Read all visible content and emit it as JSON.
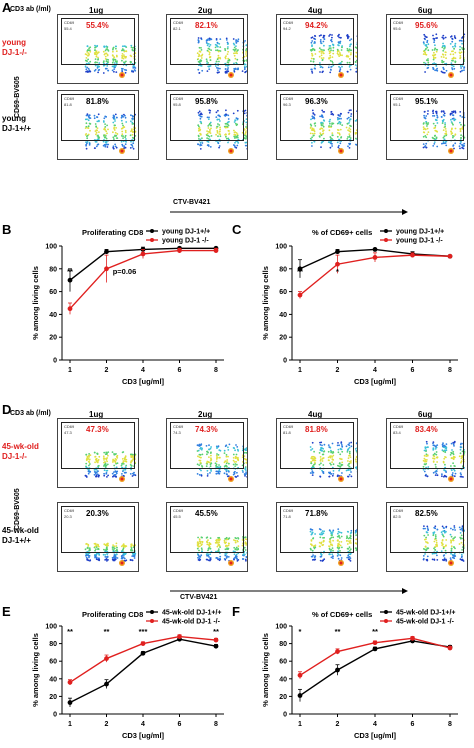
{
  "panels": {
    "A": {
      "letter": "A",
      "header": "CD3 ab (/ml)",
      "doses": [
        "1ug",
        "2ug",
        "4ug",
        "6ug"
      ],
      "yaxis": "CD69-BV605",
      "xaxis": "CTV-BV421",
      "rows": [
        {
          "label1": "young",
          "label2": "DJ-1-/-",
          "color": "#e0201f",
          "gate_values": [
            "55.4",
            "82.1",
            "94.2",
            "95.6"
          ],
          "percents": [
            "55.4%",
            "82.1%",
            "94.2%",
            "95.6%"
          ]
        },
        {
          "label1": "young",
          "label2": "DJ-1+/+",
          "color": "#000000",
          "gate_values": [
            "81.8",
            "95.8",
            "96.3",
            "95.1"
          ],
          "percents": [
            "81.8%",
            "95.8%",
            "96.3%",
            "95.1%"
          ]
        }
      ],
      "gate_name": "CD69"
    },
    "D": {
      "letter": "D",
      "header": "CD3 ab (/ml)",
      "doses": [
        "1ug",
        "2ug",
        "4ug",
        "6ug"
      ],
      "yaxis": "CD69-BV605",
      "xaxis": "CTV-BV421",
      "rows": [
        {
          "label1": "45-wk-old",
          "label2": "DJ-1-/-",
          "color": "#e0201f",
          "gate_values": [
            "47.3",
            "74.3",
            "81.8",
            "83.4"
          ],
          "percents": [
            "47.3%",
            "74.3%",
            "81.8%",
            "83.4%"
          ]
        },
        {
          "label1": "45-wk-old",
          "label2": "DJ-1+/+",
          "color": "#000000",
          "gate_values": [
            "20.3",
            "45.5",
            "71.8",
            "82.5"
          ],
          "percents": [
            "20.3%",
            "45.5%",
            "71.8%",
            "82.5%"
          ]
        }
      ],
      "gate_name": "CD69"
    }
  },
  "chart_data": [
    {
      "id": "B",
      "letter": "B",
      "type": "line",
      "title": "Proliferating  CD8",
      "xlabel": "CD3 [ug/ml]",
      "ylabel": "% among living cells",
      "x": [
        1,
        2,
        4,
        6,
        8
      ],
      "ylim": [
        0,
        100
      ],
      "yticks": [
        0,
        20,
        40,
        60,
        80,
        100
      ],
      "legend": "top-right",
      "series": [
        {
          "name": "young DJ-1+/+",
          "color": "#000000",
          "values": [
            70,
            95,
            97,
            98,
            98
          ],
          "errors": [
            10,
            2,
            2,
            1,
            1
          ]
        },
        {
          "name": "young DJ-1 -/-",
          "color": "#e0201f",
          "values": [
            45,
            80,
            93,
            96,
            96
          ],
          "errors": [
            5,
            12,
            4,
            2,
            2
          ]
        }
      ],
      "annotations": [
        {
          "x": 1,
          "text": "**"
        },
        {
          "x": 2,
          "text": "p=0.06"
        }
      ]
    },
    {
      "id": "C",
      "letter": "C",
      "type": "line",
      "title": "% of CD69+ cells",
      "xlabel": "CD3 [ug/ml]",
      "ylabel": "% among living cells",
      "x": [
        1,
        2,
        4,
        6,
        8
      ],
      "ylim": [
        0,
        100
      ],
      "yticks": [
        0,
        20,
        40,
        60,
        80,
        100
      ],
      "legend": "top-right",
      "series": [
        {
          "name": "young DJ-1+/+",
          "color": "#000000",
          "values": [
            80,
            95,
            97,
            93,
            91
          ],
          "errors": [
            8,
            2,
            1,
            2,
            1
          ]
        },
        {
          "name": "young DJ-1 -/-",
          "color": "#e0201f",
          "values": [
            57,
            84,
            90,
            92,
            91
          ],
          "errors": [
            3,
            8,
            4,
            2,
            1
          ]
        }
      ],
      "annotations": [
        {
          "x": 1,
          "text": "**"
        },
        {
          "x": 2,
          "text": "*"
        }
      ]
    },
    {
      "id": "E",
      "letter": "E",
      "type": "line",
      "title": "Proliferating  CD8",
      "xlabel": "CD3 [ug/ml]",
      "ylabel": "% among living cells",
      "x": [
        1,
        2,
        4,
        6,
        8
      ],
      "ylim": [
        0,
        100
      ],
      "yticks": [
        0,
        20,
        40,
        60,
        80,
        100
      ],
      "legend": "top-right",
      "series": [
        {
          "name": "45-wk-old DJ-1+/+",
          "color": "#000000",
          "values": [
            13,
            34,
            69,
            85,
            77
          ],
          "errors": [
            5,
            5,
            2,
            2,
            2
          ]
        },
        {
          "name": "45-wk-old DJ-1 -/-",
          "color": "#e0201f",
          "values": [
            36,
            63,
            80,
            88,
            84
          ],
          "errors": [
            3,
            4,
            2,
            2,
            2
          ]
        }
      ],
      "annotations": [
        {
          "x": 1,
          "text": "**"
        },
        {
          "x": 2,
          "text": "**"
        },
        {
          "x": 4,
          "text": "***"
        },
        {
          "x": 8,
          "text": "**"
        }
      ]
    },
    {
      "id": "F",
      "letter": "F",
      "type": "line",
      "title": "% of CD69+ cells",
      "xlabel": "CD3 [ug/ml]",
      "ylabel": "% among living cells",
      "x": [
        1,
        2,
        4,
        6,
        8
      ],
      "ylim": [
        0,
        100
      ],
      "yticks": [
        0,
        20,
        40,
        60,
        80,
        100
      ],
      "legend": "top-right",
      "series": [
        {
          "name": "45-wk-old DJ-1+/+",
          "color": "#000000",
          "values": [
            21,
            50,
            74,
            83,
            76
          ],
          "errors": [
            7,
            6,
            2,
            2,
            2
          ]
        },
        {
          "name": "45-wk-old DJ-1 -/-",
          "color": "#e0201f",
          "values": [
            44,
            71,
            81,
            86,
            75
          ],
          "errors": [
            4,
            3,
            2,
            2,
            2
          ]
        }
      ],
      "annotations": [
        {
          "x": 1,
          "text": "*"
        },
        {
          "x": 2,
          "text": "**"
        },
        {
          "x": 4,
          "text": "**"
        }
      ]
    }
  ]
}
